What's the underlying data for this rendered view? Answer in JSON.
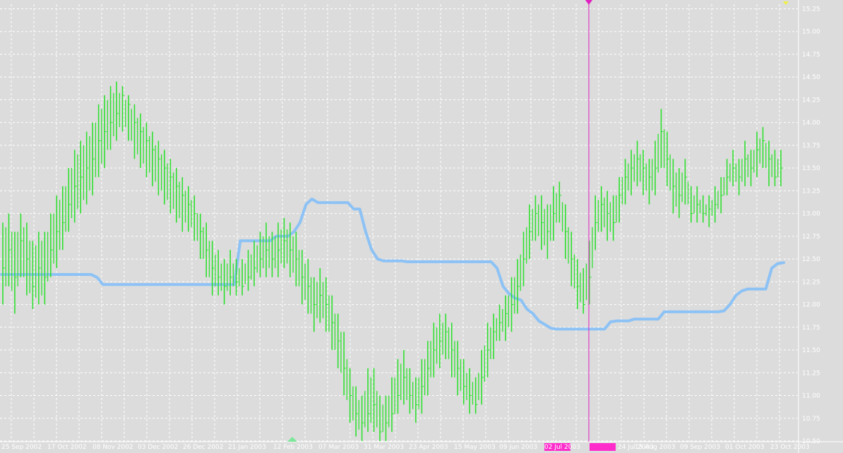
{
  "chart_data": {
    "type": "line",
    "title": "",
    "xlabel": "",
    "ylabel": "",
    "ylim": [
      10.5,
      15.3
    ],
    "grid": true,
    "y_ticks": [
      "10.50",
      "10.75",
      "11.00",
      "11.25",
      "11.50",
      "11.75",
      "12.00",
      "12.25",
      "12.50",
      "12.75",
      "13.00",
      "13.25",
      "13.50",
      "13.75",
      "14.00",
      "14.25",
      "14.50",
      "14.75",
      "15.00",
      "15.25"
    ],
    "x_tick_labels": [
      "25 Sep 2002",
      "17 Oct 2002",
      "08 Nov 2002",
      "03 Dec 2002",
      "26 Dec 2002",
      "21 Jan 2003",
      "12 Feb 2003",
      "07 Mar 2003",
      "31 Mar 2003",
      "23 Apr 2003",
      "15 May 2003",
      "09 Jun 2003",
      "02 Jul 2003",
      "24 Jul 2003",
      "15 Aug 2003",
      "09 Sep 2003",
      "01 Oct 2003",
      "23 Oct 2003"
    ],
    "highlighted_x_labels": [
      "02 Jul 2003",
      "24 Jul 2003"
    ],
    "cursor_date": "24 Jul 2003",
    "colors": {
      "background": "#dcdcdc",
      "price_bars": "#2fe02f",
      "indicator_line": "#8cc2f5",
      "cursor_line": "#e020c0",
      "grid": "#ffffff",
      "text": "#ffffff",
      "label_highlight": "#ff2ccc"
    },
    "series": [
      {
        "type": "ohlc",
        "close": [
          12.4,
          12.6,
          12.3,
          12.7,
          12.5,
          12.2,
          12.4,
          12.3,
          12.6,
          12.8,
          12.9,
          13.1,
          13.3,
          13.4,
          13.5,
          13.6,
          13.8,
          13.9,
          14.0,
          14.1,
          14.3,
          14.2,
          14.0,
          13.9,
          13.8,
          13.7,
          13.6,
          13.5,
          13.4,
          13.3,
          13.2,
          13.1,
          13.0,
          12.8,
          12.6,
          12.4,
          12.3,
          12.2,
          12.3,
          12.25,
          12.2,
          12.3,
          12.4,
          12.5,
          12.6,
          12.5,
          12.6,
          12.7,
          12.6,
          12.5,
          12.3,
          12.2,
          12.0,
          12.1,
          12.0,
          11.8,
          11.6,
          11.3,
          11.0,
          10.8,
          10.7,
          10.8,
          10.9,
          10.6,
          10.7,
          10.8,
          11.0,
          11.2,
          11.0,
          10.9,
          11.1,
          11.3,
          11.5,
          11.6,
          11.7,
          11.5,
          11.3,
          11.1,
          11.0,
          10.9,
          11.2,
          11.5,
          11.7,
          11.8,
          11.9,
          12.0,
          12.2,
          12.5,
          12.8,
          13.0,
          12.9,
          12.8,
          13.0,
          13.2,
          12.8,
          12.5,
          12.2,
          12.0,
          12.3,
          12.9,
          13.1,
          13.0,
          12.9,
          13.2,
          13.4,
          13.5,
          13.6,
          13.5,
          13.4,
          13.5,
          13.9,
          13.6,
          13.3,
          13.2,
          13.4,
          13.0,
          13.1,
          13.0,
          13.05,
          13.1,
          13.2,
          13.4,
          13.5,
          13.4,
          13.6,
          13.5,
          13.7,
          13.8,
          13.6,
          13.4,
          13.5
        ],
        "high": [
          12.9,
          13.0,
          12.8,
          13.0,
          12.9,
          12.7,
          12.8,
          12.8,
          13.0,
          13.2,
          13.3,
          13.5,
          13.7,
          13.8,
          13.9,
          14.0,
          14.2,
          14.3,
          14.4,
          14.45,
          14.4,
          14.3,
          14.2,
          14.1,
          14.0,
          13.9,
          13.8,
          13.7,
          13.6,
          13.5,
          13.4,
          13.3,
          13.2,
          13.0,
          12.9,
          12.7,
          12.6,
          12.5,
          12.6,
          12.5,
          12.5,
          12.6,
          12.7,
          12.8,
          12.9,
          12.8,
          12.9,
          12.95,
          12.9,
          12.8,
          12.6,
          12.5,
          12.3,
          12.4,
          12.3,
          12.1,
          11.9,
          11.7,
          11.3,
          11.1,
          11.0,
          11.3,
          11.3,
          11.0,
          11.0,
          11.2,
          11.4,
          11.5,
          11.3,
          11.2,
          11.4,
          11.6,
          11.8,
          11.9,
          11.9,
          11.8,
          11.6,
          11.4,
          11.3,
          11.2,
          11.5,
          11.8,
          11.9,
          12.0,
          12.1,
          12.3,
          12.5,
          12.8,
          13.1,
          13.2,
          13.2,
          13.1,
          13.3,
          13.35,
          13.1,
          12.8,
          12.5,
          12.4,
          12.7,
          13.2,
          13.3,
          13.25,
          13.2,
          13.4,
          13.6,
          13.7,
          13.8,
          13.7,
          13.6,
          13.8,
          14.15,
          13.9,
          13.6,
          13.5,
          13.6,
          13.3,
          13.3,
          13.2,
          13.2,
          13.3,
          13.4,
          13.6,
          13.7,
          13.6,
          13.8,
          13.7,
          13.9,
          13.95,
          13.8,
          13.7,
          13.7
        ],
        "low": [
          12.0,
          12.2,
          11.9,
          12.3,
          12.1,
          11.95,
          12.0,
          12.0,
          12.3,
          12.4,
          12.6,
          12.8,
          12.9,
          13.0,
          13.1,
          13.2,
          13.4,
          13.5,
          13.7,
          13.8,
          13.9,
          13.8,
          13.6,
          13.5,
          13.4,
          13.3,
          13.2,
          13.1,
          13.0,
          12.9,
          12.8,
          12.8,
          12.7,
          12.5,
          12.3,
          12.1,
          12.1,
          12.0,
          12.1,
          12.1,
          12.1,
          12.15,
          12.2,
          12.3,
          12.3,
          12.3,
          12.3,
          12.4,
          12.3,
          12.2,
          12.0,
          11.9,
          11.7,
          11.8,
          11.7,
          11.5,
          11.3,
          11.0,
          10.7,
          10.55,
          10.5,
          10.6,
          10.6,
          10.5,
          10.5,
          10.6,
          10.8,
          10.9,
          10.8,
          10.7,
          10.8,
          11.0,
          11.2,
          11.3,
          11.4,
          11.2,
          11.0,
          10.9,
          10.8,
          10.8,
          10.9,
          11.2,
          11.4,
          11.6,
          11.6,
          11.7,
          11.9,
          12.2,
          12.5,
          12.7,
          12.6,
          12.5,
          12.7,
          12.9,
          12.5,
          12.2,
          11.95,
          11.9,
          12.0,
          12.6,
          12.8,
          12.7,
          12.7,
          12.9,
          13.1,
          13.2,
          13.3,
          13.2,
          13.1,
          13.2,
          13.5,
          13.3,
          13.0,
          12.95,
          13.1,
          12.9,
          12.9,
          12.9,
          12.85,
          12.9,
          13.0,
          13.2,
          13.3,
          13.2,
          13.3,
          13.3,
          13.4,
          13.5,
          13.3,
          13.3,
          13.3
        ]
      },
      {
        "type": "line",
        "values": [
          12.33,
          12.33,
          12.33,
          12.33,
          12.33,
          12.33,
          12.33,
          12.33,
          12.33,
          12.33,
          12.33,
          12.33,
          12.33,
          12.33,
          12.33,
          12.33,
          12.3,
          12.22,
          12.22,
          12.22,
          12.22,
          12.22,
          12.22,
          12.22,
          12.22,
          12.22,
          12.22,
          12.22,
          12.22,
          12.22,
          12.22,
          12.22,
          12.22,
          12.22,
          12.22,
          12.22,
          12.22,
          12.22,
          12.22,
          12.22,
          12.7,
          12.7,
          12.7,
          12.7,
          12.7,
          12.7,
          12.75,
          12.75,
          12.75,
          12.8,
          12.9,
          13.1,
          13.16,
          13.12,
          13.12,
          13.12,
          13.12,
          13.12,
          13.12,
          13.05,
          13.05,
          12.8,
          12.6,
          12.5,
          12.48,
          12.48,
          12.48,
          12.48,
          12.47,
          12.47,
          12.47,
          12.47,
          12.47,
          12.47,
          12.47,
          12.47,
          12.47,
          12.47,
          12.47,
          12.47,
          12.47,
          12.47,
          12.47,
          12.4,
          12.2,
          12.12,
          12.07,
          12.05,
          11.95,
          11.9,
          11.82,
          11.78,
          11.74,
          11.73,
          11.73,
          11.73,
          11.73,
          11.73,
          11.73,
          11.73,
          11.73,
          11.73,
          11.81,
          11.82,
          11.82,
          11.82,
          11.84,
          11.84,
          11.84,
          11.84,
          11.84,
          11.92,
          11.92,
          11.92,
          11.92,
          11.92,
          11.92,
          11.92,
          11.92,
          11.92,
          11.92,
          11.93,
          12.0,
          12.1,
          12.15,
          12.17,
          12.17,
          12.17,
          12.17,
          12.4,
          12.45,
          12.46
        ]
      }
    ]
  }
}
